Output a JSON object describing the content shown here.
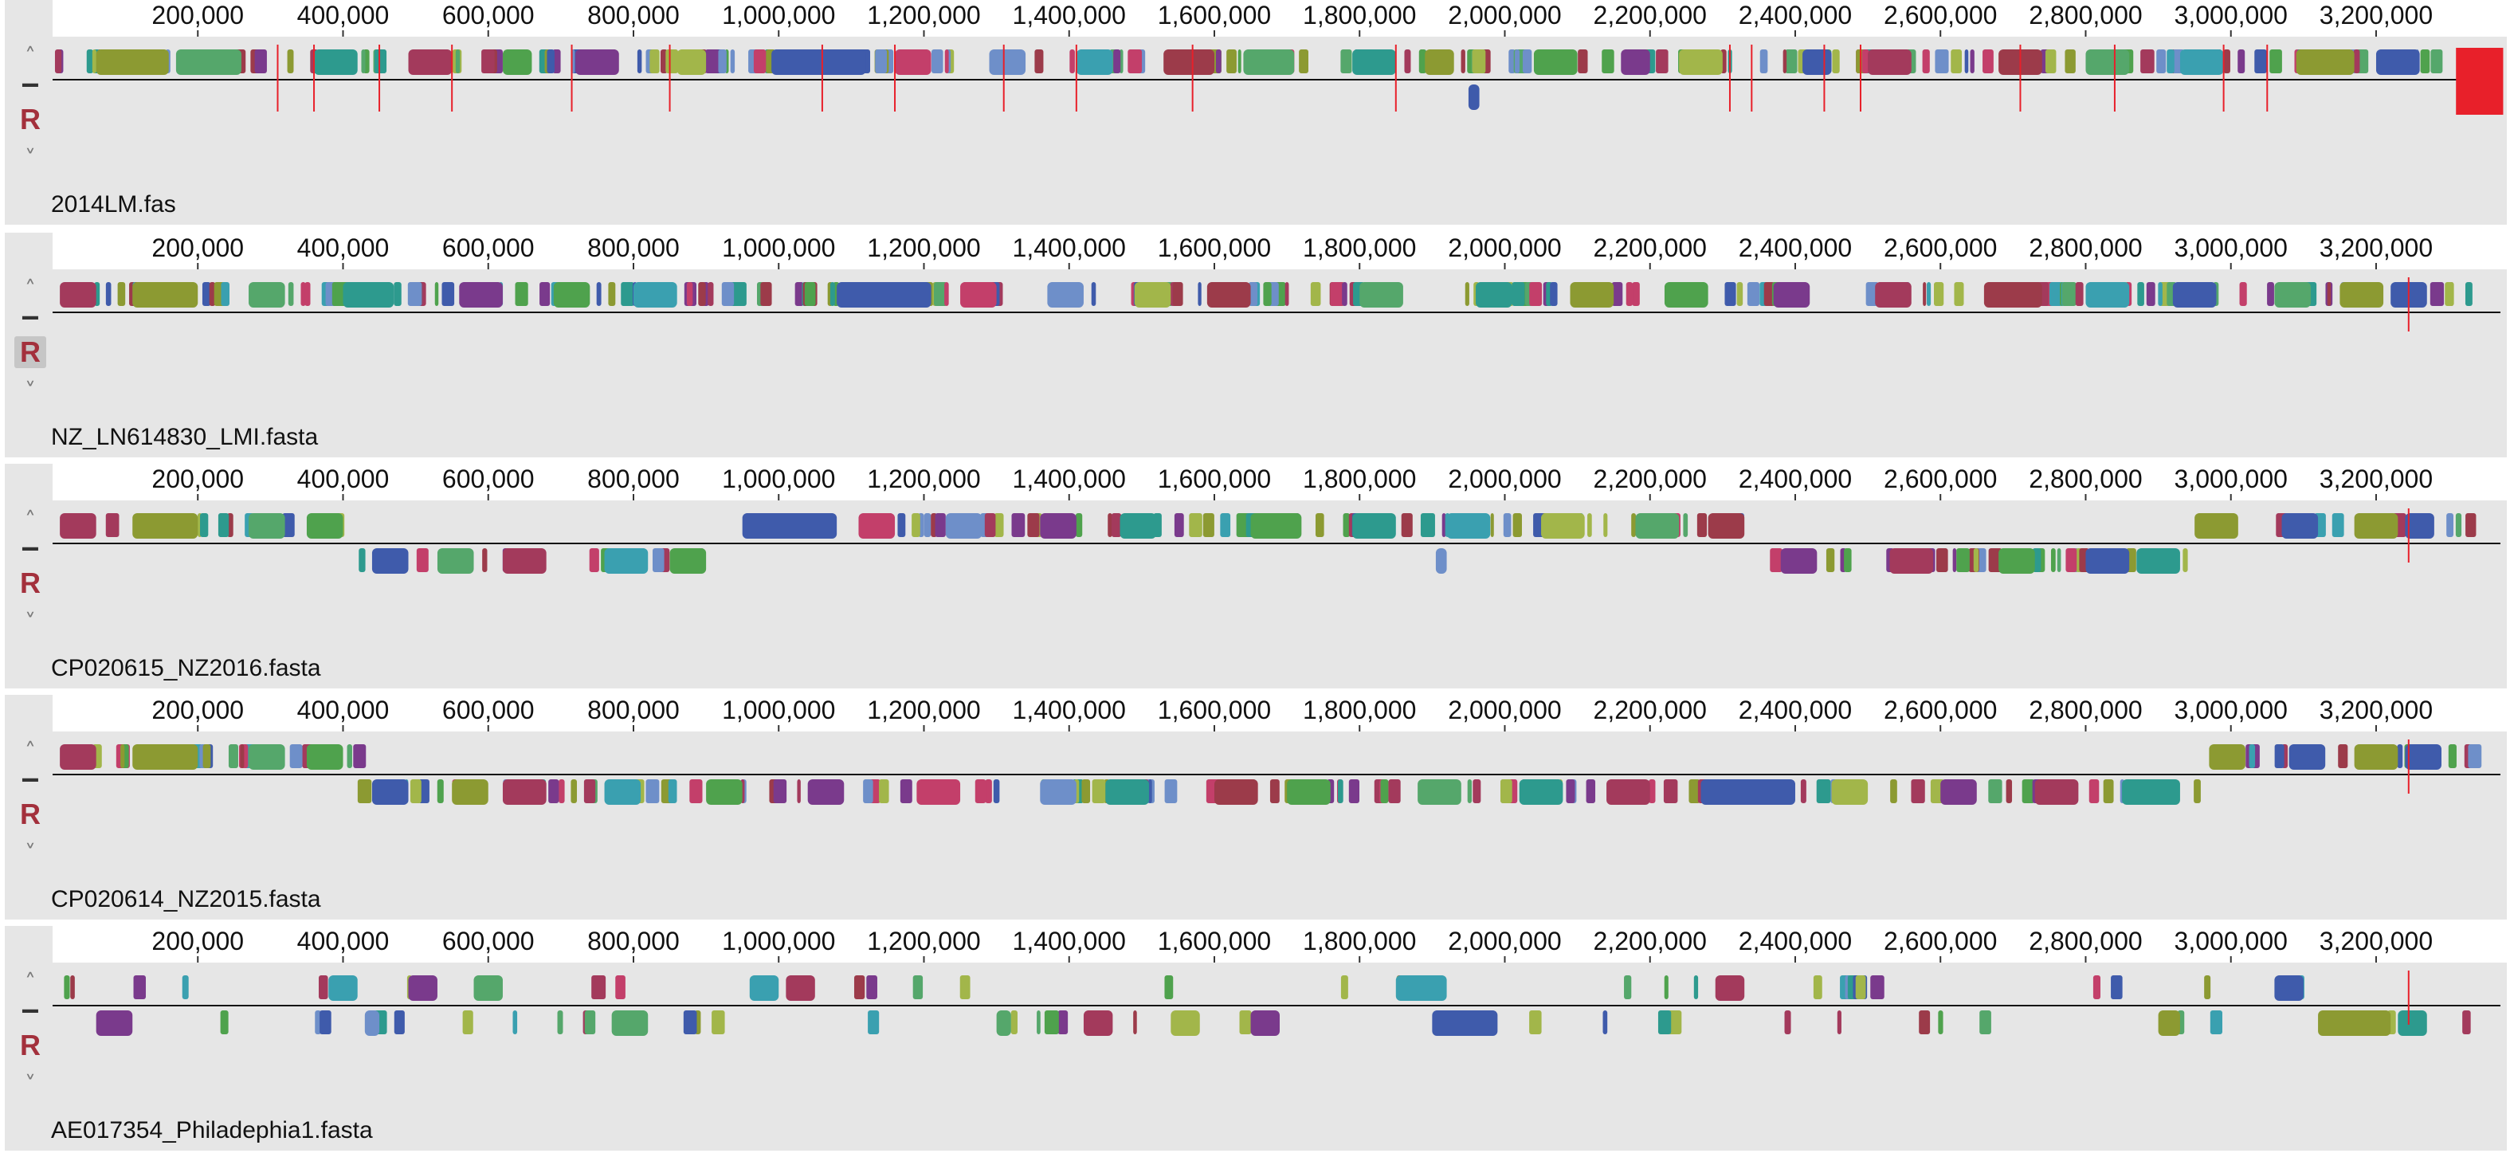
{
  "tick_labels": [
    "200,000",
    "400,000",
    "600,000",
    "800,000",
    "1,000,000",
    "1,200,000",
    "1,400,000",
    "1,600,000",
    "1,800,000",
    "2,000,000",
    "2,200,000",
    "2,400,000",
    "2,600,000",
    "2,800,000",
    "3,000,000",
    "3,200,000"
  ],
  "controls": {
    "up_icon": "chevron-up-icon",
    "minus_icon": "minus-icon",
    "reference_label": "R",
    "down_icon": "chevron-down-icon"
  },
  "palette": [
    "#8c9a32",
    "#3f5bab",
    "#2d9a8e",
    "#a33a5c",
    "#4fa24d",
    "#7a3a8c",
    "#c33f6a",
    "#a2b64a",
    "#6e8fc9",
    "#3aa0b0",
    "#9c3b4a",
    "#55a76b"
  ],
  "highlight_color": "#e8202a",
  "genomes": [
    {
      "name": "2014LM.fas",
      "reference_marker": false,
      "scale_max": 3380000,
      "blocks": [
        {
          "start": 60000,
          "end": 160000,
          "strand": 1,
          "color": "#8c9a32"
        },
        {
          "start": 170000,
          "end": 260000,
          "strand": 1,
          "color": "#55a76b"
        },
        {
          "start": 360000,
          "end": 420000,
          "strand": 1,
          "color": "#2d9a8e"
        },
        {
          "start": 490000,
          "end": 550000,
          "strand": 1,
          "color": "#a33a5c"
        },
        {
          "start": 620000,
          "end": 660000,
          "strand": 1,
          "color": "#4fa24d"
        },
        {
          "start": 720000,
          "end": 780000,
          "strand": 1,
          "color": "#7a3a8c"
        },
        {
          "start": 860000,
          "end": 900000,
          "strand": 1,
          "color": "#a2b64a"
        },
        {
          "start": 990000,
          "end": 1120000,
          "strand": 1,
          "color": "#3f5bab"
        },
        {
          "start": 1160000,
          "end": 1210000,
          "strand": 1,
          "color": "#c33f6a"
        },
        {
          "start": 1290000,
          "end": 1340000,
          "strand": 1,
          "color": "#6e8fc9"
        },
        {
          "start": 1410000,
          "end": 1460000,
          "strand": 1,
          "color": "#3aa0b0"
        },
        {
          "start": 1530000,
          "end": 1600000,
          "strand": 1,
          "color": "#9c3b4a"
        },
        {
          "start": 1640000,
          "end": 1710000,
          "strand": 1,
          "color": "#55a76b"
        },
        {
          "start": 1790000,
          "end": 1850000,
          "strand": 1,
          "color": "#2d9a8e"
        },
        {
          "start": 1890000,
          "end": 1930000,
          "strand": 1,
          "color": "#8c9a32"
        },
        {
          "start": 2040000,
          "end": 2100000,
          "strand": 1,
          "color": "#4fa24d"
        },
        {
          "start": 2160000,
          "end": 2200000,
          "strand": 1,
          "color": "#7a3a8c"
        },
        {
          "start": 2240000,
          "end": 2300000,
          "strand": 1,
          "color": "#a2b64a"
        },
        {
          "start": 2410000,
          "end": 2450000,
          "strand": 1,
          "color": "#3f5bab"
        },
        {
          "start": 2500000,
          "end": 2560000,
          "strand": 1,
          "color": "#a33a5c"
        },
        {
          "start": 2680000,
          "end": 2740000,
          "strand": 1,
          "color": "#9c3b4a"
        },
        {
          "start": 2800000,
          "end": 2860000,
          "strand": 1,
          "color": "#55a76b"
        },
        {
          "start": 2930000,
          "end": 2990000,
          "strand": 1,
          "color": "#3aa0b0"
        },
        {
          "start": 3090000,
          "end": 3170000,
          "strand": 1,
          "color": "#8c9a32"
        },
        {
          "start": 3200000,
          "end": 3260000,
          "strand": 1,
          "color": "#3f5bab"
        },
        {
          "start": 1950000,
          "end": 1965000,
          "strand": -1,
          "color": "#3f5bab"
        },
        {
          "start": 3310000,
          "end": 3375000,
          "strand": -1,
          "color": "#e8202a"
        }
      ]
    },
    {
      "name": "NZ_LN614830_LMI.fasta",
      "reference_marker": true,
      "scale_max": 3380000,
      "blocks": [
        {
          "start": 10000,
          "end": 60000,
          "strand": 1,
          "color": "#a33a5c"
        },
        {
          "start": 110000,
          "end": 200000,
          "strand": 1,
          "color": "#8c9a32"
        },
        {
          "start": 270000,
          "end": 320000,
          "strand": 1,
          "color": "#55a76b"
        },
        {
          "start": 400000,
          "end": 470000,
          "strand": 1,
          "color": "#2d9a8e"
        },
        {
          "start": 560000,
          "end": 620000,
          "strand": 1,
          "color": "#7a3a8c"
        },
        {
          "start": 690000,
          "end": 740000,
          "strand": 1,
          "color": "#4fa24d"
        },
        {
          "start": 800000,
          "end": 860000,
          "strand": 1,
          "color": "#3aa0b0"
        },
        {
          "start": 1080000,
          "end": 1210000,
          "strand": 1,
          "color": "#3f5bab"
        },
        {
          "start": 1250000,
          "end": 1300000,
          "strand": 1,
          "color": "#c33f6a"
        },
        {
          "start": 1370000,
          "end": 1420000,
          "strand": 1,
          "color": "#6e8fc9"
        },
        {
          "start": 1490000,
          "end": 1540000,
          "strand": 1,
          "color": "#a2b64a"
        },
        {
          "start": 1590000,
          "end": 1650000,
          "strand": 1,
          "color": "#9c3b4a"
        },
        {
          "start": 1800000,
          "end": 1860000,
          "strand": 1,
          "color": "#55a76b"
        },
        {
          "start": 1960000,
          "end": 2010000,
          "strand": 1,
          "color": "#2d9a8e"
        },
        {
          "start": 2090000,
          "end": 2150000,
          "strand": 1,
          "color": "#8c9a32"
        },
        {
          "start": 2220000,
          "end": 2280000,
          "strand": 1,
          "color": "#4fa24d"
        },
        {
          "start": 2370000,
          "end": 2420000,
          "strand": 1,
          "color": "#7a3a8c"
        },
        {
          "start": 2510000,
          "end": 2560000,
          "strand": 1,
          "color": "#a33a5c"
        },
        {
          "start": 2660000,
          "end": 2740000,
          "strand": 1,
          "color": "#9c3b4a"
        },
        {
          "start": 2800000,
          "end": 2860000,
          "strand": 1,
          "color": "#3aa0b0"
        },
        {
          "start": 2920000,
          "end": 2980000,
          "strand": 1,
          "color": "#3f5bab"
        },
        {
          "start": 3060000,
          "end": 3110000,
          "strand": 1,
          "color": "#55a76b"
        },
        {
          "start": 3150000,
          "end": 3210000,
          "strand": 1,
          "color": "#8c9a32"
        },
        {
          "start": 3220000,
          "end": 3270000,
          "strand": 1,
          "color": "#3f5bab"
        }
      ]
    },
    {
      "name": "CP020615_NZ2016.fasta",
      "reference_marker": false,
      "scale_max": 3380000,
      "blocks": [
        {
          "start": 10000,
          "end": 60000,
          "strand": 1,
          "color": "#a33a5c"
        },
        {
          "start": 110000,
          "end": 200000,
          "strand": 1,
          "color": "#8c9a32"
        },
        {
          "start": 270000,
          "end": 320000,
          "strand": 1,
          "color": "#55a76b"
        },
        {
          "start": 350000,
          "end": 400000,
          "strand": 1,
          "color": "#4fa24d"
        },
        {
          "start": 950000,
          "end": 1080000,
          "strand": 1,
          "color": "#3f5bab"
        },
        {
          "start": 1110000,
          "end": 1160000,
          "strand": 1,
          "color": "#c33f6a"
        },
        {
          "start": 1230000,
          "end": 1280000,
          "strand": 1,
          "color": "#6e8fc9"
        },
        {
          "start": 1360000,
          "end": 1410000,
          "strand": 1,
          "color": "#7a3a8c"
        },
        {
          "start": 1470000,
          "end": 1520000,
          "strand": 1,
          "color": "#2d9a8e"
        },
        {
          "start": 1650000,
          "end": 1720000,
          "strand": 1,
          "color": "#4fa24d"
        },
        {
          "start": 1790000,
          "end": 1850000,
          "strand": 1,
          "color": "#2d9a8e"
        },
        {
          "start": 1920000,
          "end": 1980000,
          "strand": 1,
          "color": "#3aa0b0"
        },
        {
          "start": 2050000,
          "end": 2110000,
          "strand": 1,
          "color": "#a2b64a"
        },
        {
          "start": 2180000,
          "end": 2240000,
          "strand": 1,
          "color": "#55a76b"
        },
        {
          "start": 2280000,
          "end": 2330000,
          "strand": 1,
          "color": "#9c3b4a"
        },
        {
          "start": 2950000,
          "end": 3010000,
          "strand": 1,
          "color": "#8c9a32"
        },
        {
          "start": 3070000,
          "end": 3120000,
          "strand": 1,
          "color": "#3f5bab"
        },
        {
          "start": 3170000,
          "end": 3230000,
          "strand": 1,
          "color": "#8c9a32"
        },
        {
          "start": 3240000,
          "end": 3280000,
          "strand": 1,
          "color": "#3f5bab"
        },
        {
          "start": 440000,
          "end": 490000,
          "strand": -1,
          "color": "#3f5bab"
        },
        {
          "start": 530000,
          "end": 580000,
          "strand": -1,
          "color": "#55a76b"
        },
        {
          "start": 620000,
          "end": 680000,
          "strand": -1,
          "color": "#a33a5c"
        },
        {
          "start": 760000,
          "end": 820000,
          "strand": -1,
          "color": "#3aa0b0"
        },
        {
          "start": 850000,
          "end": 900000,
          "strand": -1,
          "color": "#4fa24d"
        },
        {
          "start": 1905000,
          "end": 1920000,
          "strand": -1,
          "color": "#6e8fc9"
        },
        {
          "start": 2380000,
          "end": 2430000,
          "strand": -1,
          "color": "#7a3a8c"
        },
        {
          "start": 2530000,
          "end": 2590000,
          "strand": -1,
          "color": "#a33a5c"
        },
        {
          "start": 2680000,
          "end": 2730000,
          "strand": -1,
          "color": "#4fa24d"
        },
        {
          "start": 2800000,
          "end": 2860000,
          "strand": -1,
          "color": "#3f5bab"
        },
        {
          "start": 2870000,
          "end": 2930000,
          "strand": -1,
          "color": "#2d9a8e"
        }
      ]
    },
    {
      "name": "CP020614_NZ2015.fasta",
      "reference_marker": false,
      "scale_max": 3380000,
      "blocks": [
        {
          "start": 10000,
          "end": 60000,
          "strand": 1,
          "color": "#a33a5c"
        },
        {
          "start": 110000,
          "end": 200000,
          "strand": 1,
          "color": "#8c9a32"
        },
        {
          "start": 270000,
          "end": 320000,
          "strand": 1,
          "color": "#55a76b"
        },
        {
          "start": 350000,
          "end": 400000,
          "strand": 1,
          "color": "#4fa24d"
        },
        {
          "start": 2970000,
          "end": 3020000,
          "strand": 1,
          "color": "#8c9a32"
        },
        {
          "start": 3080000,
          "end": 3130000,
          "strand": 1,
          "color": "#3f5bab"
        },
        {
          "start": 3170000,
          "end": 3230000,
          "strand": 1,
          "color": "#8c9a32"
        },
        {
          "start": 3240000,
          "end": 3290000,
          "strand": 1,
          "color": "#3f5bab"
        },
        {
          "start": 440000,
          "end": 490000,
          "strand": -1,
          "color": "#3f5bab"
        },
        {
          "start": 550000,
          "end": 600000,
          "strand": -1,
          "color": "#8c9a32"
        },
        {
          "start": 620000,
          "end": 680000,
          "strand": -1,
          "color": "#a33a5c"
        },
        {
          "start": 760000,
          "end": 810000,
          "strand": -1,
          "color": "#3aa0b0"
        },
        {
          "start": 900000,
          "end": 950000,
          "strand": -1,
          "color": "#4fa24d"
        },
        {
          "start": 1040000,
          "end": 1090000,
          "strand": -1,
          "color": "#7a3a8c"
        },
        {
          "start": 1190000,
          "end": 1250000,
          "strand": -1,
          "color": "#c33f6a"
        },
        {
          "start": 1360000,
          "end": 1410000,
          "strand": -1,
          "color": "#6e8fc9"
        },
        {
          "start": 1450000,
          "end": 1510000,
          "strand": -1,
          "color": "#2d9a8e"
        },
        {
          "start": 1600000,
          "end": 1660000,
          "strand": -1,
          "color": "#9c3b4a"
        },
        {
          "start": 1700000,
          "end": 1760000,
          "strand": -1,
          "color": "#4fa24d"
        },
        {
          "start": 1880000,
          "end": 1940000,
          "strand": -1,
          "color": "#55a76b"
        },
        {
          "start": 2020000,
          "end": 2080000,
          "strand": -1,
          "color": "#2d9a8e"
        },
        {
          "start": 2140000,
          "end": 2200000,
          "strand": -1,
          "color": "#a33a5c"
        },
        {
          "start": 2270000,
          "end": 2400000,
          "strand": -1,
          "color": "#3f5bab"
        },
        {
          "start": 2450000,
          "end": 2500000,
          "strand": -1,
          "color": "#a2b64a"
        },
        {
          "start": 2600000,
          "end": 2650000,
          "strand": -1,
          "color": "#7a3a8c"
        },
        {
          "start": 2730000,
          "end": 2790000,
          "strand": -1,
          "color": "#a33a5c"
        },
        {
          "start": 2850000,
          "end": 2930000,
          "strand": -1,
          "color": "#2d9a8e"
        }
      ]
    },
    {
      "name": "AE017354_Philadephia1.fasta",
      "reference_marker": false,
      "scale_max": 3380000,
      "blocks": [
        {
          "start": 380000,
          "end": 420000,
          "strand": 1,
          "color": "#3aa0b0"
        },
        {
          "start": 490000,
          "end": 530000,
          "strand": 1,
          "color": "#7a3a8c"
        },
        {
          "start": 580000,
          "end": 620000,
          "strand": 1,
          "color": "#55a76b"
        },
        {
          "start": 960000,
          "end": 1000000,
          "strand": 1,
          "color": "#3aa0b0"
        },
        {
          "start": 1010000,
          "end": 1050000,
          "strand": 1,
          "color": "#a33a5c"
        },
        {
          "start": 1850000,
          "end": 1920000,
          "strand": 1,
          "color": "#3aa0b0"
        },
        {
          "start": 2290000,
          "end": 2330000,
          "strand": 1,
          "color": "#a33a5c"
        },
        {
          "start": 3060000,
          "end": 3100000,
          "strand": 1,
          "color": "#3f5bab"
        },
        {
          "start": 60000,
          "end": 110000,
          "strand": -1,
          "color": "#7a3a8c"
        },
        {
          "start": 430000,
          "end": 450000,
          "strand": -1,
          "color": "#6e8fc9"
        },
        {
          "start": 770000,
          "end": 820000,
          "strand": -1,
          "color": "#55a76b"
        },
        {
          "start": 1300000,
          "end": 1320000,
          "strand": -1,
          "color": "#55a76b"
        },
        {
          "start": 1420000,
          "end": 1460000,
          "strand": -1,
          "color": "#a33a5c"
        },
        {
          "start": 1540000,
          "end": 1580000,
          "strand": -1,
          "color": "#a2b64a"
        },
        {
          "start": 1650000,
          "end": 1690000,
          "strand": -1,
          "color": "#7a3a8c"
        },
        {
          "start": 1900000,
          "end": 1990000,
          "strand": -1,
          "color": "#3f5bab"
        },
        {
          "start": 2900000,
          "end": 2930000,
          "strand": -1,
          "color": "#8c9a32"
        },
        {
          "start": 3120000,
          "end": 3220000,
          "strand": -1,
          "color": "#8c9a32"
        },
        {
          "start": 3230000,
          "end": 3270000,
          "strand": -1,
          "color": "#2d9a8e"
        }
      ]
    }
  ]
}
